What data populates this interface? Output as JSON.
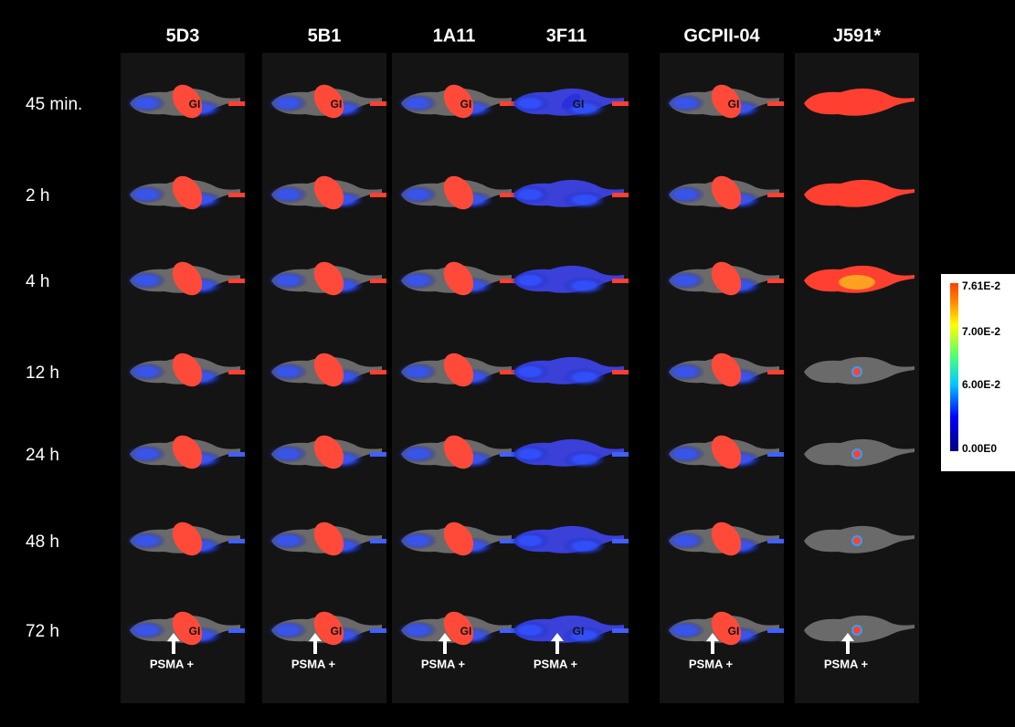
{
  "columns": [
    "5D3",
    "5B1",
    "1A11",
    "3F11",
    "GCPII-04",
    "J591*"
  ],
  "rows": [
    "45 min.",
    "2 h",
    "4 h",
    "12 h",
    "24 h",
    "48 h",
    "72 h"
  ],
  "organ_label": "GI",
  "target_label": "PSMA +",
  "colorbar": {
    "labels": [
      "7.61E-2",
      "7.00E-2",
      "6.00E-2",
      "0.00E0"
    ]
  }
}
